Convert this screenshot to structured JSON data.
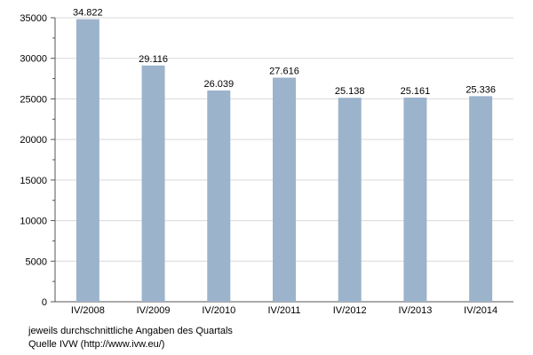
{
  "chart_data": {
    "type": "bar",
    "title": "",
    "xlabel": "",
    "ylabel": "",
    "categories": [
      "IV/2008",
      "IV/2009",
      "IV/2010",
      "IV/2011",
      "IV/2012",
      "IV/2013",
      "IV/2014"
    ],
    "values": [
      34822,
      29116,
      26039,
      27616,
      25138,
      25161,
      25336
    ],
    "value_labels": [
      "34.822",
      "29.116",
      "26.039",
      "27.616",
      "25.138",
      "25.161",
      "25.336"
    ],
    "ylim": [
      0,
      35000
    ],
    "yticks": [
      0,
      5000,
      10000,
      15000,
      20000,
      25000,
      30000,
      35000
    ],
    "grid": true,
    "legend": "none",
    "bar_color": "#9cb3cc"
  },
  "footnotes": {
    "line1": "jeweils durchschnittliche Angaben des Quartals",
    "line2": "Quelle IVW (http://www.ivw.eu/)"
  }
}
